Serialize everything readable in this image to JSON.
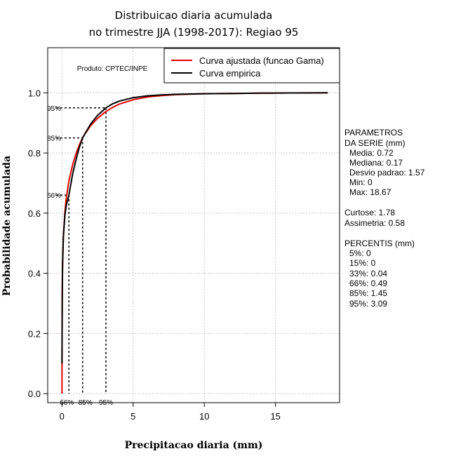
{
  "chart_data": {
    "type": "line",
    "title_line1": "Distribuicao diaria acumulada",
    "title_line2": "no trimestre JJA (1998-2017): Regiao 95",
    "xlabel": "Precipitacao diaria (mm)",
    "ylabel": "Probabilidade acumulada",
    "xlim": [
      -1,
      19.5
    ],
    "ylim": [
      -0.03,
      1.15
    ],
    "xticks": [
      0,
      5,
      10,
      15
    ],
    "yticks": [
      0.0,
      0.2,
      0.4,
      0.6,
      0.8,
      1.0
    ],
    "xtick_labels": [
      "0",
      "5",
      "10",
      "15"
    ],
    "ytick_labels": [
      "0.0",
      "0.2",
      "0.4",
      "0.6",
      "0.8",
      "1.0"
    ],
    "grid": true,
    "product_label": "Produto: CPTEC/INPE",
    "legend": {
      "position": "top-right",
      "entries": [
        "Curva ajustada (funcao Gama)",
        "Curva empirica"
      ]
    },
    "series": [
      {
        "name": "Curva ajustada (funcao Gama)",
        "color": "#e00000",
        "x": [
          0.0,
          0.02,
          0.05,
          0.1,
          0.2,
          0.3,
          0.5,
          0.75,
          1.0,
          1.25,
          1.5,
          2.0,
          2.5,
          3.0,
          3.5,
          4.0,
          5.0,
          6.0,
          7.0,
          8.0,
          10.0,
          12.0,
          14.0,
          16.0,
          18.0,
          18.67
        ],
        "y": [
          0.0,
          0.34,
          0.44,
          0.52,
          0.6,
          0.65,
          0.71,
          0.76,
          0.8,
          0.83,
          0.855,
          0.89,
          0.915,
          0.935,
          0.95,
          0.962,
          0.977,
          0.986,
          0.991,
          0.994,
          0.997,
          0.998,
          0.999,
          0.9995,
          0.9998,
          1.0
        ]
      },
      {
        "name": "Curva empirica",
        "color": "#000000",
        "x": [
          0.0,
          0.02,
          0.04,
          0.1,
          0.2,
          0.3,
          0.49,
          0.75,
          1.0,
          1.2,
          1.45,
          2.0,
          2.5,
          3.09,
          3.5,
          4.0,
          5.0,
          6.0,
          7.0,
          8.0,
          10.0,
          12.0,
          14.0,
          16.0,
          18.0,
          18.67
        ],
        "y": [
          0.1,
          0.3,
          0.42,
          0.52,
          0.59,
          0.625,
          0.66,
          0.73,
          0.78,
          0.815,
          0.85,
          0.895,
          0.925,
          0.95,
          0.962,
          0.972,
          0.984,
          0.99,
          0.993,
          0.995,
          0.997,
          0.998,
          0.999,
          0.9995,
          0.9998,
          1.0
        ]
      }
    ],
    "percentile_markers": [
      {
        "label": "66%",
        "prob": 0.66,
        "x": 0.49
      },
      {
        "label": "85%",
        "prob": 0.85,
        "x": 1.45
      },
      {
        "label": "95%",
        "prob": 0.95,
        "x": 3.09
      }
    ]
  },
  "sidebar": {
    "params_header1": "PARAMETROS",
    "params_header2": "DA SERIE (mm)",
    "media": "Media: 0.72",
    "mediana": "Mediana: 0.17",
    "desvio": "Desvio padrao: 1.57",
    "min": "Min: 0",
    "max": "Max: 18.67",
    "curtose": "Curtose: 1.78",
    "assimetria": "Assimetria: 0.58",
    "percentis_header": "PERCENTIS (mm)",
    "p5": "5%: 0",
    "p15": "15%: 0",
    "p33": "33%: 0.04",
    "p66": "66%: 0.49",
    "p85": "85%: 1.45",
    "p95": "95%: 3.09"
  }
}
